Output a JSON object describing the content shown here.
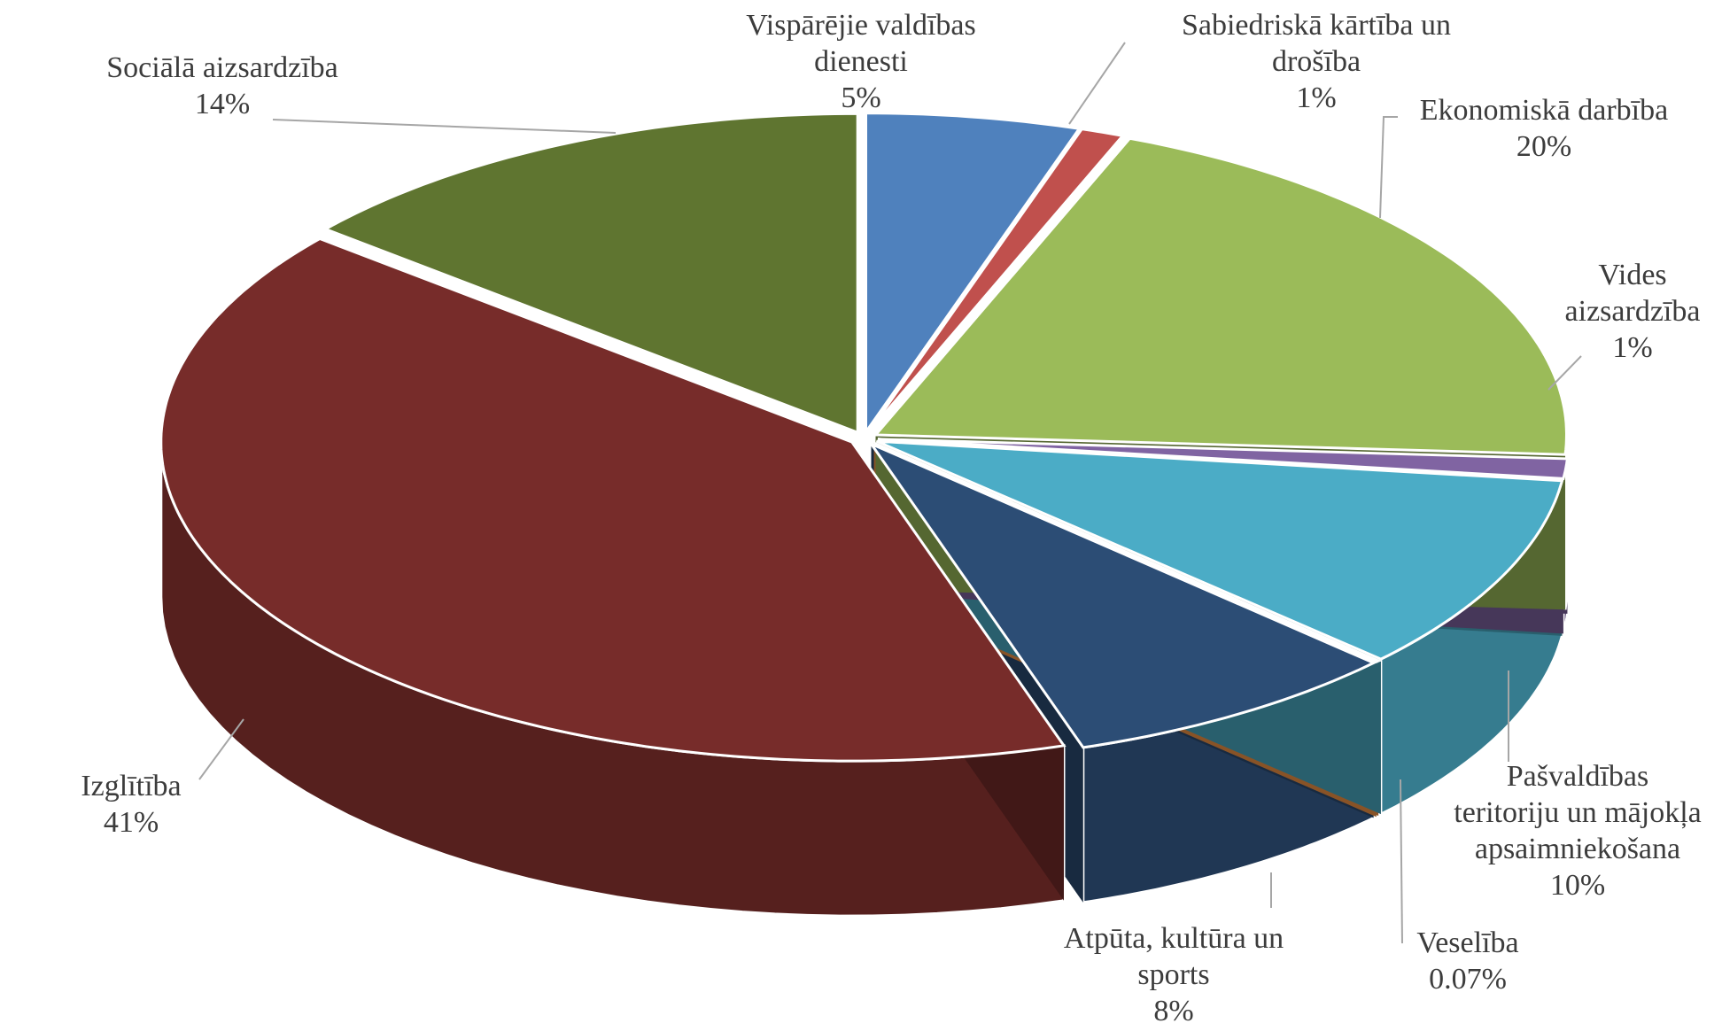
{
  "chart_data": {
    "type": "pie",
    "style": "3d-exploded",
    "slices": [
      {
        "lines": [
          "Vispārējie valdības",
          "dienesti"
        ],
        "pct_label": "5%",
        "value": 5,
        "color": "#4f81bd"
      },
      {
        "lines": [
          "Sabiedriskā kārtība un",
          "drošība"
        ],
        "pct_label": "1%",
        "value": 1,
        "color": "#c0504d"
      },
      {
        "lines": [
          "Ekonomiskā darbība"
        ],
        "pct_label": "20%",
        "value": 20,
        "color": "#9bbb59"
      },
      {
        "lines": [
          "Vides",
          "aizsardzība"
        ],
        "pct_label": "1%",
        "value": 1,
        "color": "#8064a2"
      },
      {
        "lines": [
          "Pašvaldības",
          "teritoriju un mājokļa",
          "apsaimniekošana"
        ],
        "pct_label": "10%",
        "value": 10,
        "color": "#4bacc6"
      },
      {
        "lines": [
          "Veselība"
        ],
        "pct_label": "0.07%",
        "value": 0.07,
        "color": "#f79646"
      },
      {
        "lines": [
          "Atpūta, kultūra un",
          "sports"
        ],
        "pct_label": "8%",
        "value": 8,
        "color": "#2c4d75"
      },
      {
        "lines": [
          "Izglītība"
        ],
        "pct_label": "41%",
        "value": 41,
        "color": "#772c2a"
      },
      {
        "lines": [
          "Sociālā aizsardzība"
        ],
        "pct_label": "14%",
        "value": 14,
        "color": "#5f7530"
      }
    ]
  }
}
